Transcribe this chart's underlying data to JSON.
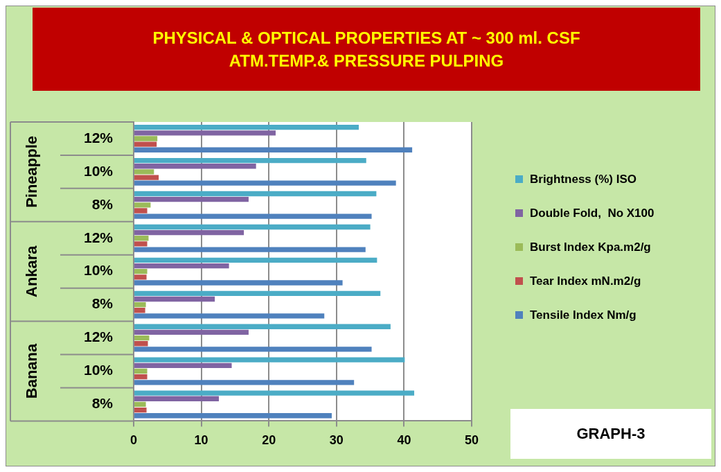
{
  "chart_data": {
    "type": "bar",
    "orientation": "horizontal",
    "title": "PHYSICAL & OPTICAL PROPERTIES AT ~ 300 ml. CSF",
    "subtitle": "ATM.TEMP.& PRESSURE PULPING",
    "categories": [
      "12%",
      "10%",
      "8%",
      "12%",
      "10%",
      "8%",
      "12%",
      "10%",
      "8%"
    ],
    "series": [
      {
        "name": "Brightness (%) ISO",
        "color": "#4bacc6",
        "values": [
          33.3,
          34.4,
          35.9,
          35.0,
          36.0,
          36.5,
          38.0,
          40.1,
          41.5
        ]
      },
      {
        "name": "Double Fold,  No X100",
        "color": "#8064a2",
        "values": [
          21.0,
          18.1,
          17.0,
          16.3,
          14.1,
          12.0,
          17.0,
          14.5,
          12.6
        ]
      },
      {
        "name": "Burst Index Kpa.m2/g",
        "color": "#9bbb59",
        "values": [
          3.5,
          3.0,
          2.5,
          2.2,
          2.0,
          1.8,
          2.3,
          2.0,
          1.8
        ]
      },
      {
        "name": "Tear Index mN.m2/g",
        "color": "#c0504d",
        "values": [
          3.4,
          3.7,
          2.0,
          2.0,
          1.9,
          1.7,
          2.1,
          2.0,
          1.9
        ]
      },
      {
        "name": "Tensile Index Nm/g",
        "color": "#4f81bd",
        "values": [
          41.2,
          38.8,
          35.2,
          34.3,
          30.9,
          28.2,
          35.2,
          32.6,
          29.3
        ]
      }
    ],
    "xlim": [
      0,
      50
    ],
    "xticks": [
      0,
      10,
      20,
      30,
      40,
      50
    ],
    "grid": "x",
    "legend": "right",
    "annotations": [
      "Pineapple",
      "Ankara",
      "Banana",
      "GRAPH-3"
    ]
  }
}
